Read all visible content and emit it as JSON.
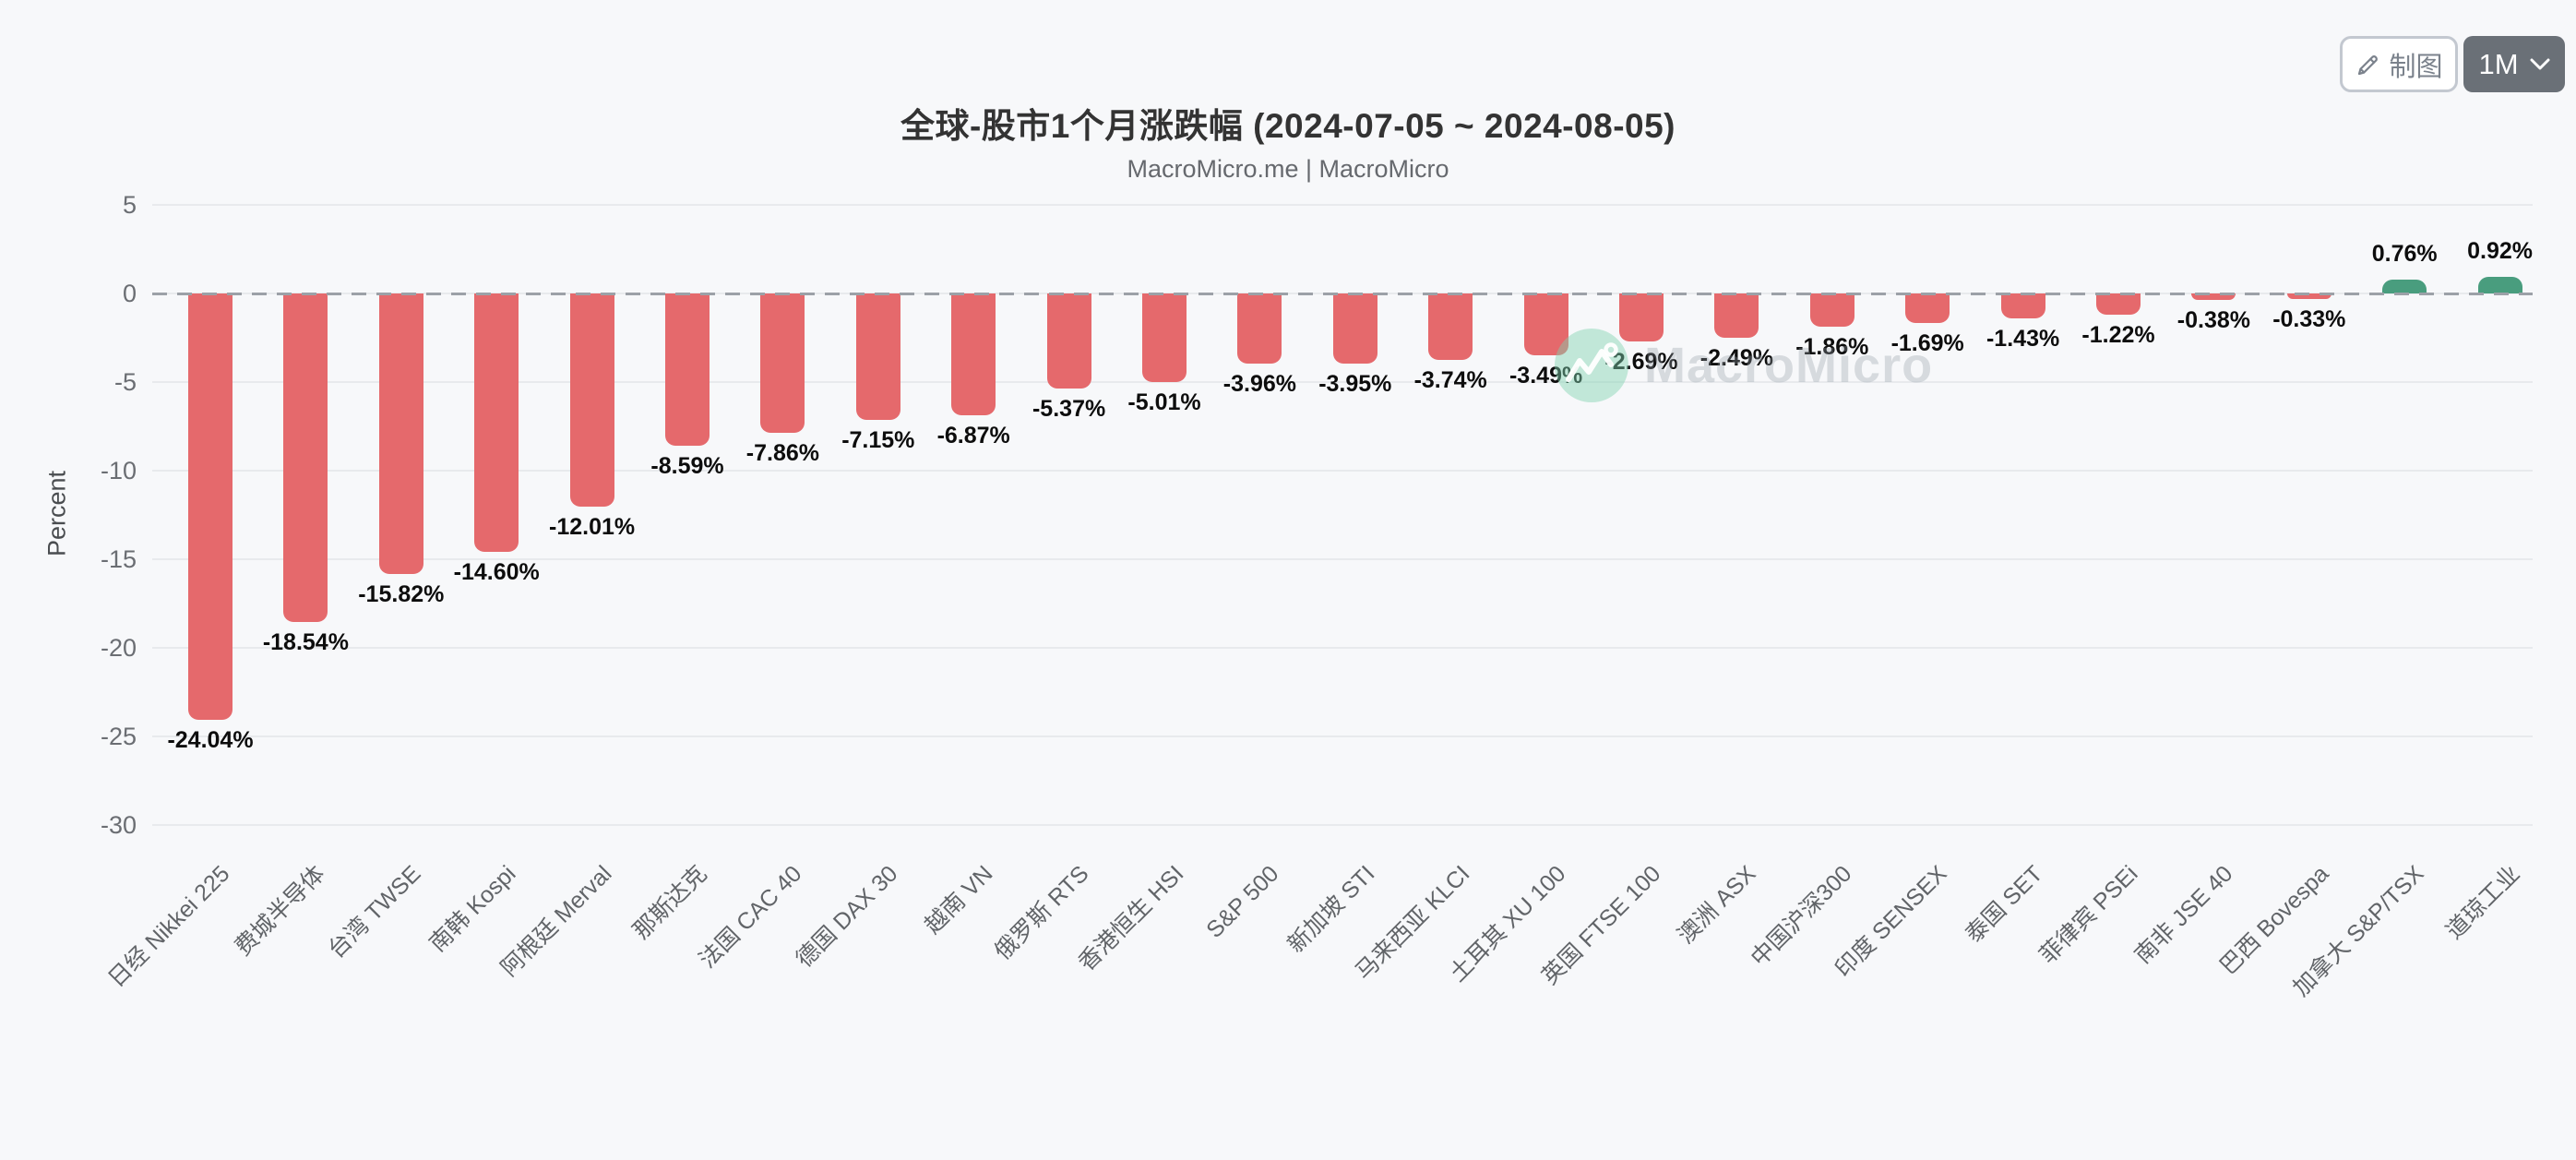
{
  "header": {
    "title": "全球-股市1个月涨跌幅 (2024-07-05 ~ 2024-08-05)",
    "subtitle": "MacroMicro.me | MacroMicro"
  },
  "toolbar": {
    "draw_button_label": "制图",
    "period_value": "1M"
  },
  "watermark": {
    "text": "MacroMicro"
  },
  "chart_data": {
    "type": "bar",
    "title": "全球-股市1个月涨跌幅 (2024-07-05 ~ 2024-08-05)",
    "subtitle": "MacroMicro.me | MacroMicro",
    "xlabel": "",
    "ylabel": "Percent",
    "ylim": [
      -30,
      5
    ],
    "yticks": [
      5,
      0,
      -5,
      -10,
      -15,
      -20,
      -25,
      -30
    ],
    "grid": true,
    "zero_line_style": "dashed",
    "legend_position": "none",
    "value_label_format": "{value}%",
    "categories": [
      "日经 Nikkei 225",
      "费城半导体",
      "台湾 TWSE",
      "南韩 Kospi",
      "阿根廷 Merval",
      "那斯达克",
      "法国 CAC 40",
      "德国 DAX 30",
      "越南 VN",
      "俄罗斯 RTS",
      "香港恒生 HSI",
      "S&P 500",
      "新加坡 STI",
      "马来西亚 KLCI",
      "土耳其 XU 100",
      "英国 FTSE 100",
      "澳洲 ASX",
      "中国沪深300",
      "印度 SENSEX",
      "泰国 SET",
      "菲律宾 PSEi",
      "南非 JSE 40",
      "巴西 Bovespa",
      "加拿大 S&P/TSX",
      "道琼工业"
    ],
    "values": [
      -24.04,
      -18.54,
      -15.82,
      -14.6,
      -12.01,
      -8.59,
      -7.86,
      -7.15,
      -6.87,
      -5.37,
      -5.01,
      -3.96,
      -3.95,
      -3.74,
      -3.49,
      -2.69,
      -2.49,
      -1.86,
      -1.69,
      -1.43,
      -1.22,
      -0.38,
      -0.33,
      0.76,
      0.92
    ],
    "colors": {
      "negative_bar": "#e5696c",
      "positive_bar": "#499d7e",
      "gridline": "#e8eaed",
      "zero_line": "#9ca1a7",
      "background": "#f7f8fa"
    }
  }
}
